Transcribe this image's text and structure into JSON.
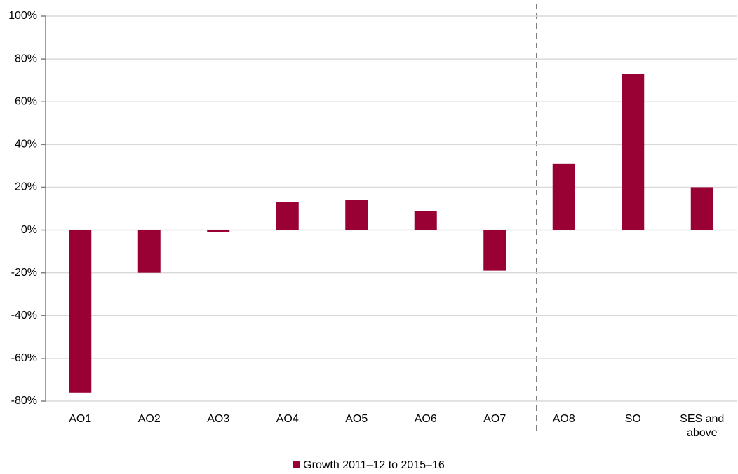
{
  "chart_data": {
    "type": "bar",
    "categories": [
      "AO1",
      "AO2",
      "AO3",
      "AO4",
      "AO5",
      "AO6",
      "AO7",
      "AO8",
      "SO",
      "SES and above"
    ],
    "series": [
      {
        "name": "Growth 2011–12 to 2015–16",
        "color": "#990033",
        "values": [
          -76,
          -20,
          -1,
          13,
          14,
          9,
          -19,
          31,
          73,
          20
        ]
      }
    ],
    "ylim": [
      -80,
      100
    ],
    "yticks": [
      {
        "value": -80,
        "label": "-80%"
      },
      {
        "value": -60,
        "label": "-60%"
      },
      {
        "value": -40,
        "label": "-40%"
      },
      {
        "value": -20,
        "label": "-20%"
      },
      {
        "value": 0,
        "label": "0%"
      },
      {
        "value": 20,
        "label": "20%"
      },
      {
        "value": 40,
        "label": "40%"
      },
      {
        "value": 60,
        "label": "60%"
      },
      {
        "value": 80,
        "label": "80%"
      },
      {
        "value": 100,
        "label": "100%"
      }
    ],
    "grid": true
  }
}
